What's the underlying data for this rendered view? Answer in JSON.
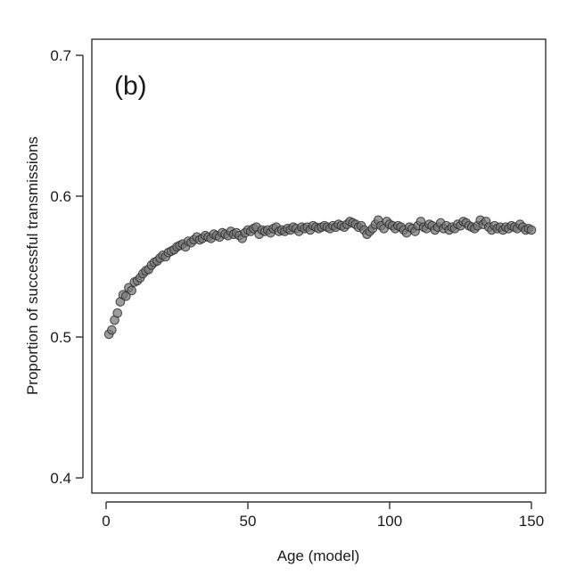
{
  "chart_data": {
    "type": "scatter",
    "panel_label": "(b)",
    "xlabel": "Age (model)",
    "ylabel": "Proportion of successful transmissions",
    "xlim": [
      0,
      150
    ],
    "ylim": [
      0.4,
      0.7
    ],
    "xticks": [
      0,
      50,
      100,
      150
    ],
    "yticks": [
      0.4,
      0.5,
      0.6,
      0.7
    ],
    "xtick_labels": [
      "0",
      "50",
      "100",
      "150"
    ],
    "ytick_labels": [
      "0.4",
      "0.5",
      "0.6",
      "0.7"
    ],
    "grid": false,
    "x": [
      1,
      2,
      3,
      4,
      5,
      6,
      7,
      8,
      9,
      10,
      11,
      12,
      13,
      14,
      15,
      16,
      17,
      18,
      19,
      20,
      21,
      22,
      23,
      24,
      25,
      26,
      27,
      28,
      29,
      30,
      31,
      32,
      33,
      34,
      35,
      36,
      37,
      38,
      39,
      40,
      41,
      42,
      43,
      44,
      45,
      46,
      47,
      48,
      49,
      50,
      51,
      52,
      53,
      54,
      55,
      56,
      57,
      58,
      59,
      60,
      61,
      62,
      63,
      64,
      65,
      66,
      67,
      68,
      69,
      70,
      71,
      72,
      73,
      74,
      75,
      76,
      77,
      78,
      79,
      80,
      81,
      82,
      83,
      84,
      85,
      86,
      87,
      88,
      89,
      90,
      91,
      92,
      93,
      94,
      95,
      96,
      97,
      98,
      99,
      100,
      101,
      102,
      103,
      104,
      105,
      106,
      107,
      108,
      109,
      110,
      111,
      112,
      113,
      114,
      115,
      116,
      117,
      118,
      119,
      120,
      121,
      122,
      123,
      124,
      125,
      126,
      127,
      128,
      129,
      130,
      131,
      132,
      133,
      134,
      135,
      136,
      137,
      138,
      139,
      140,
      141,
      142,
      143,
      144,
      145,
      146,
      147,
      148,
      149,
      150
    ],
    "y": [
      0.502,
      0.505,
      0.512,
      0.517,
      0.525,
      0.53,
      0.529,
      0.535,
      0.533,
      0.539,
      0.54,
      0.542,
      0.545,
      0.547,
      0.548,
      0.551,
      0.553,
      0.554,
      0.556,
      0.558,
      0.557,
      0.56,
      0.561,
      0.562,
      0.564,
      0.565,
      0.566,
      0.564,
      0.568,
      0.567,
      0.569,
      0.571,
      0.569,
      0.57,
      0.572,
      0.571,
      0.57,
      0.573,
      0.572,
      0.571,
      0.574,
      0.573,
      0.572,
      0.575,
      0.573,
      0.574,
      0.572,
      0.57,
      0.574,
      0.576,
      0.575,
      0.577,
      0.578,
      0.573,
      0.576,
      0.575,
      0.576,
      0.574,
      0.577,
      0.578,
      0.575,
      0.576,
      0.575,
      0.577,
      0.576,
      0.578,
      0.577,
      0.575,
      0.578,
      0.577,
      0.578,
      0.576,
      0.579,
      0.578,
      0.577,
      0.578,
      0.579,
      0.578,
      0.577,
      0.579,
      0.578,
      0.58,
      0.579,
      0.578,
      0.58,
      0.582,
      0.581,
      0.58,
      0.578,
      0.579,
      0.576,
      0.573,
      0.575,
      0.577,
      0.58,
      0.583,
      0.579,
      0.577,
      0.582,
      0.58,
      0.579,
      0.577,
      0.579,
      0.578,
      0.576,
      0.574,
      0.578,
      0.577,
      0.575,
      0.579,
      0.582,
      0.578,
      0.577,
      0.58,
      0.579,
      0.576,
      0.578,
      0.581,
      0.577,
      0.579,
      0.576,
      0.578,
      0.577,
      0.58,
      0.579,
      0.582,
      0.581,
      0.579,
      0.578,
      0.577,
      0.579,
      0.583,
      0.58,
      0.582,
      0.578,
      0.576,
      0.579,
      0.577,
      0.578,
      0.576,
      0.578,
      0.577,
      0.579,
      0.578,
      0.577,
      0.58,
      0.578,
      0.576,
      0.577,
      0.576
    ]
  }
}
